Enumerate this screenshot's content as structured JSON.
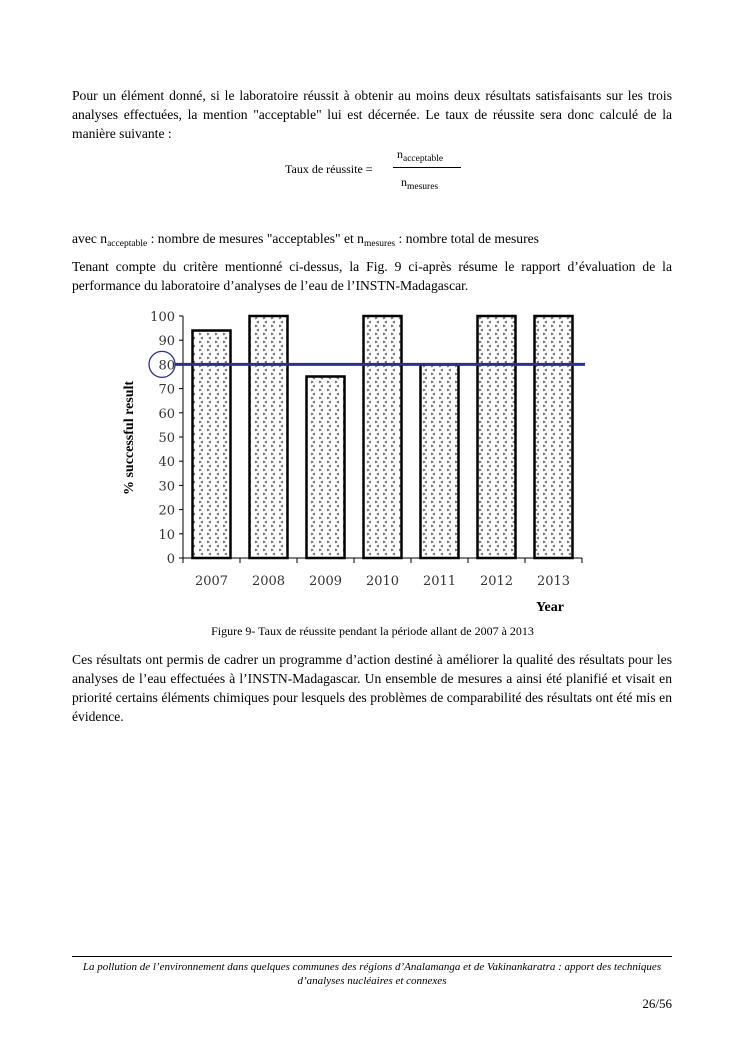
{
  "paragraphs": {
    "p1": "Pour un élément donné, si le laboratoire réussit à obtenir au moins deux résultats satisfaisants sur les trois analyses effectuées, la mention \"acceptable\" lui est décernée. Le taux de réussite sera donc calculé de la manière suivante :",
    "p2_prefix": "avec n",
    "p2_sub1": "acceptable",
    "p2_mid": " : nombre de mesures \"acceptables\" et n",
    "p2_sub2": "mesures",
    "p2_suffix": " : nombre total de mesures",
    "p3": "Tenant compte du critère mentionné ci-dessus, la Fig. 9 ci-après résume le rapport d’évaluation de la performance du laboratoire d’analyses de l’eau de l’INSTN-Madagascar.",
    "p4": "Ces résultats ont permis de cadrer un programme d’action destiné à améliorer la qualité des résultats pour les analyses de l’eau effectuées à l’INSTN-Madagascar. Un ensemble de mesures a ainsi été planifié et visait en priorité  certains éléments chimiques pour lesquels des problèmes de comparabilité des résultats ont été mis en évidence."
  },
  "formula": {
    "lhs": "Taux de réussite =",
    "num_n": "n",
    "num_sub": "acceptable",
    "den_n": "n",
    "den_sub": "mesures"
  },
  "caption": "Figure 9- Taux de réussite pendant la période allant de 2007 à 2013",
  "footer": "La pollution de l’environnement dans quelques communes des régions d’Analamanga et de Vakinankaratra : apport des techniques d’analyses nucléaires et connexes",
  "page_number": "26/56",
  "chart_data": {
    "type": "bar",
    "categories": [
      "2007",
      "2008",
      "2009",
      "2010",
      "2011",
      "2012",
      "2013"
    ],
    "values": [
      94,
      100,
      75,
      100,
      80,
      100,
      100
    ],
    "ylabel": "% successful result",
    "xlabel": "Year",
    "ylim": [
      0,
      100
    ],
    "yticks": [
      0,
      10,
      20,
      30,
      40,
      50,
      60,
      70,
      80,
      90,
      100
    ],
    "threshold": {
      "value": 80,
      "color": "#2e2e8f",
      "highlighted_tick": "80"
    },
    "bar_fill": "dotted pattern",
    "grid": false
  }
}
